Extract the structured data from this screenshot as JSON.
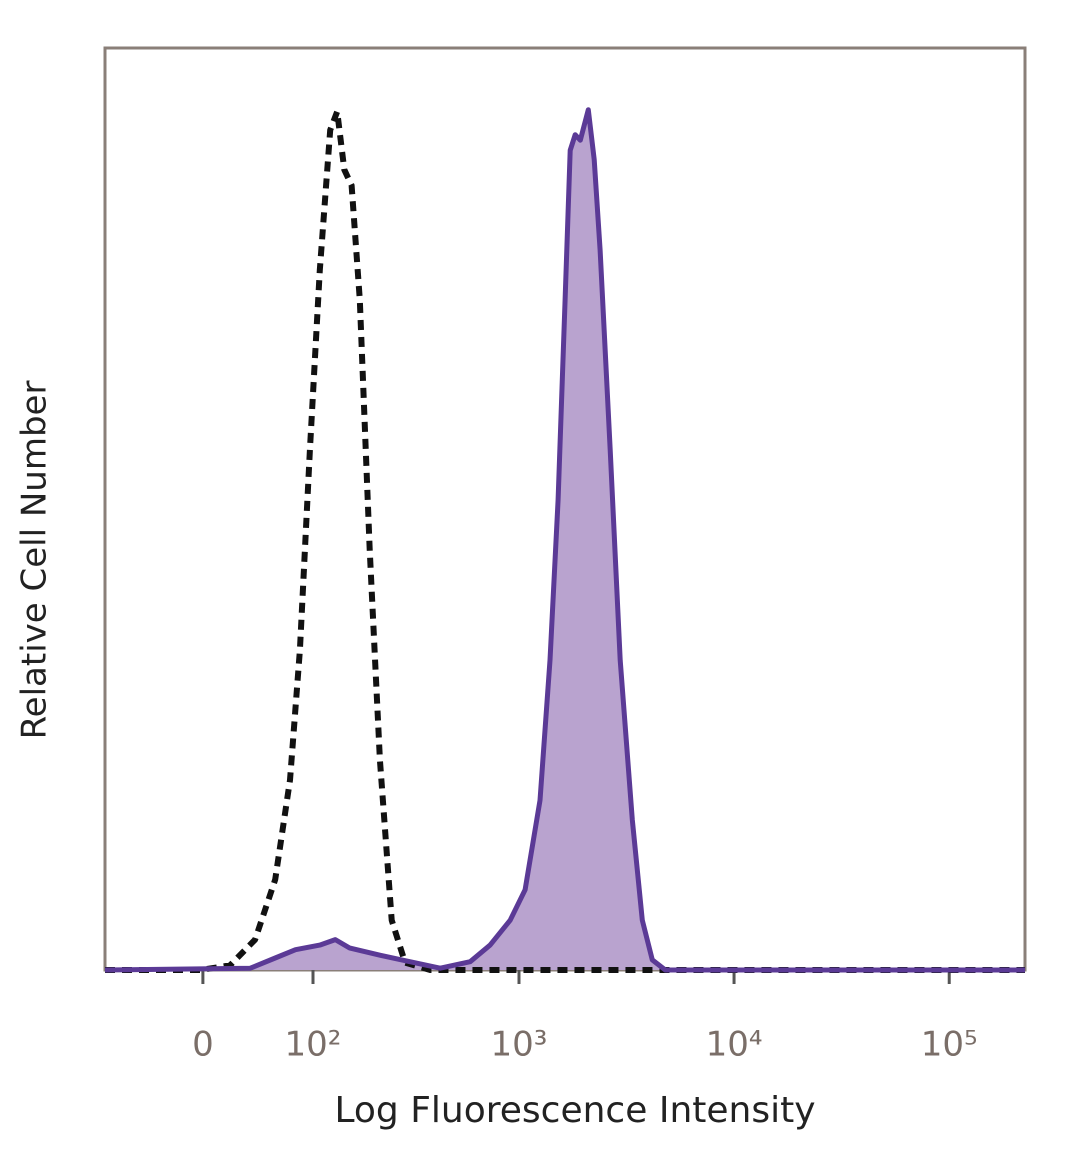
{
  "chart_data": {
    "type": "histogram-overlay",
    "xlabel": "Log Fluorescence Intensity",
    "ylabel": "Relative Cell Number",
    "xscale": "biexponential",
    "xlim": [
      -85,
      225000
    ],
    "ylim": [
      0,
      100
    ],
    "xticks": [
      0,
      {
        "value": 100,
        "label": "10²"
      },
      {
        "value": 1000,
        "label": "10³"
      },
      {
        "value": 10000,
        "label": "10⁴"
      },
      {
        "value": 100000,
        "label": "10⁵"
      }
    ],
    "series": [
      {
        "color": "#5b3a96",
        "fill": "#b9a3cf",
        "dashed": false,
        "x": [
          -85,
          36,
          58,
          79,
          109,
          132,
          156,
          221,
          308,
          428,
          592,
          733,
          910,
          1068,
          1253,
          1394,
          1521,
          1640,
          1731,
          1827,
          1929,
          2101,
          2238,
          2385,
          2656,
          2956,
          3364,
          3745,
          4168,
          4793,
          225000
        ],
        "values": [
          0,
          0.2,
          1.3,
          2.2,
          2.7,
          3.3,
          2.4,
          1.6,
          0.9,
          0.2,
          0.9,
          2.7,
          5.4,
          8.7,
          18.4,
          33.6,
          51.0,
          72.7,
          88.9,
          90.6,
          90.0,
          93.3,
          87.9,
          78.1,
          56.4,
          33.6,
          16.3,
          5.4,
          1.1,
          0,
          0
        ]
      },
      {
        "color": "#111111",
        "fill": null,
        "dashed": true,
        "x": [
          -85,
          -2,
          20,
          40,
          58,
          73,
          84,
          96,
          109,
          124,
          135,
          147,
          160,
          176,
          197,
          221,
          252,
          292,
          384,
          225000
        ],
        "values": [
          0,
          0,
          0.5,
          3.3,
          9.8,
          20.6,
          34.7,
          56.4,
          75.9,
          91.1,
          93.1,
          86.8,
          85.1,
          72.7,
          45.6,
          22.8,
          5.4,
          0.8,
          0,
          0
        ]
      }
    ]
  }
}
